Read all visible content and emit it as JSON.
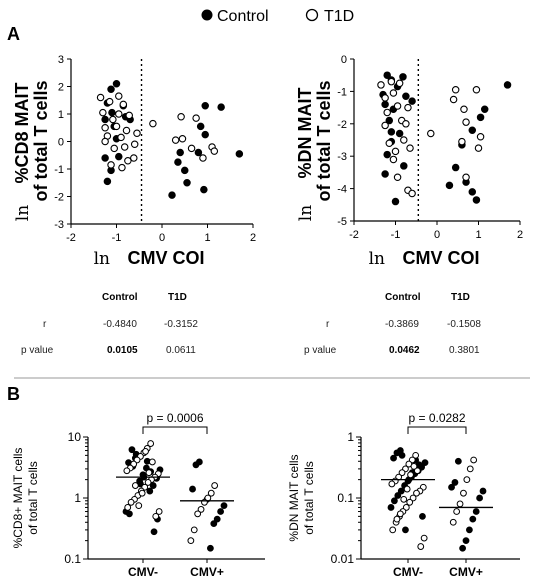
{
  "legend": {
    "control": "Control",
    "t1d": "T1D"
  },
  "panel_labels": {
    "a": "A",
    "b": "B"
  },
  "stats_table": {
    "headers": [
      "Control",
      "T1D"
    ],
    "row_labels": [
      "r",
      "p value"
    ],
    "left": {
      "r": [
        "-0.4840",
        "-0.3152"
      ],
      "p": [
        "0.0105",
        "0.0611"
      ]
    },
    "right": {
      "r": [
        "-0.3869",
        "-0.1508"
      ],
      "p": [
        "0.0462",
        "0.3801"
      ]
    }
  },
  "chart_data": [
    {
      "type": "scatter",
      "ylabel_line1": "%CD8 MAIT",
      "ylabel_line2": "of total T cells",
      "ylabel_prefix": "ln",
      "xlabel_prefix": "ln",
      "xlabel": "CMV COI",
      "xlim": [
        -2,
        2
      ],
      "ylim": [
        -3,
        3
      ],
      "xticks": [
        "-2",
        "-1",
        "0",
        "1",
        "2"
      ],
      "yticks": [
        "-3",
        "-2",
        "-1",
        "0",
        "1",
        "2",
        "3"
      ],
      "cutoff_x": -0.45,
      "series": [
        {
          "group": "control",
          "points": [
            [
              -1.25,
              0.8
            ],
            [
              -1.12,
              1.9
            ],
            [
              -1.0,
              2.1
            ],
            [
              -1.2,
              1.4
            ],
            [
              -1.1,
              1.05
            ],
            [
              -1.05,
              0.55
            ],
            [
              -0.85,
              1.3
            ],
            [
              -0.8,
              0.9
            ],
            [
              -1.0,
              0.1
            ],
            [
              -1.25,
              -0.6
            ],
            [
              -1.12,
              -1.05
            ],
            [
              -1.2,
              -1.45
            ],
            [
              -0.95,
              -0.55
            ],
            [
              -0.7,
              0.8
            ],
            [
              0.4,
              -0.4
            ],
            [
              0.35,
              -0.75
            ],
            [
              0.5,
              -1.05
            ],
            [
              0.8,
              -0.4
            ],
            [
              0.85,
              0.55
            ],
            [
              0.95,
              0.25
            ],
            [
              0.55,
              -1.5
            ],
            [
              0.92,
              -1.75
            ],
            [
              0.95,
              1.3
            ],
            [
              1.3,
              1.25
            ],
            [
              0.22,
              -1.95
            ],
            [
              1.7,
              -0.45
            ]
          ]
        },
        {
          "group": "t1d",
          "points": [
            [
              -1.35,
              1.6
            ],
            [
              -1.3,
              1.05
            ],
            [
              -1.25,
              0.5
            ],
            [
              -1.2,
              0.2
            ],
            [
              -1.15,
              1.45
            ],
            [
              -1.08,
              0.8
            ],
            [
              -1.0,
              0.55
            ],
            [
              -0.95,
              1.0
            ],
            [
              -0.9,
              0.15
            ],
            [
              -0.85,
              1.35
            ],
            [
              -0.82,
              -0.2
            ],
            [
              -0.78,
              0.4
            ],
            [
              -0.75,
              -0.7
            ],
            [
              -0.72,
              0.95
            ],
            [
              -1.05,
              -0.25
            ],
            [
              -1.12,
              -0.85
            ],
            [
              -0.88,
              -0.95
            ],
            [
              -0.62,
              -0.6
            ],
            [
              -0.55,
              0.3
            ],
            [
              -0.95,
              1.65
            ],
            [
              -0.6,
              -0.1
            ],
            [
              -1.25,
              0.0
            ],
            [
              -0.2,
              0.65
            ],
            [
              0.3,
              0.05
            ],
            [
              0.45,
              0.1
            ],
            [
              0.65,
              -0.25
            ],
            [
              0.75,
              0.85
            ],
            [
              1.1,
              -0.2
            ],
            [
              1.15,
              -0.35
            ],
            [
              0.9,
              -0.6
            ],
            [
              0.42,
              0.9
            ]
          ]
        }
      ]
    },
    {
      "type": "scatter",
      "ylabel_line1": "%DN MAIT",
      "ylabel_line2": "of total  T cells",
      "ylabel_prefix": "ln",
      "xlabel_prefix": "ln",
      "xlabel": "CMV COI",
      "xlim": [
        -2,
        2
      ],
      "ylim": [
        -5,
        0
      ],
      "xticks": [
        "-2",
        "-1",
        "0",
        "1",
        "2"
      ],
      "yticks": [
        "-5",
        "-4",
        "-3",
        "-2",
        "-1",
        "0"
      ],
      "cutoff_x": -0.45,
      "series": [
        {
          "group": "control",
          "points": [
            [
              -1.3,
              -1.1
            ],
            [
              -1.2,
              -0.5
            ],
            [
              -1.1,
              -0.65
            ],
            [
              -1.25,
              -1.4
            ],
            [
              -1.05,
              -1.55
            ],
            [
              -0.95,
              -0.85
            ],
            [
              -0.82,
              -0.55
            ],
            [
              -0.75,
              -1.15
            ],
            [
              -1.15,
              -1.9
            ],
            [
              -1.1,
              -2.25
            ],
            [
              -1.2,
              -2.95
            ],
            [
              -1.1,
              -2.55
            ],
            [
              -0.9,
              -2.3
            ],
            [
              -0.8,
              -3.3
            ],
            [
              -1.0,
              -4.4
            ],
            [
              -0.6,
              -1.3
            ],
            [
              -1.25,
              -3.55
            ],
            [
              1.7,
              -0.8
            ],
            [
              1.15,
              -1.55
            ],
            [
              1.05,
              -1.8
            ],
            [
              0.85,
              -2.2
            ],
            [
              0.6,
              -2.65
            ],
            [
              0.45,
              -3.35
            ],
            [
              0.3,
              -3.9
            ],
            [
              0.7,
              -3.8
            ],
            [
              0.85,
              -4.1
            ],
            [
              0.95,
              -4.35
            ]
          ]
        },
        {
          "group": "t1d",
          "points": [
            [
              -1.35,
              -0.8
            ],
            [
              -1.25,
              -1.2
            ],
            [
              -1.2,
              -1.65
            ],
            [
              -1.1,
              -0.7
            ],
            [
              -1.05,
              -1.05
            ],
            [
              -0.95,
              -1.45
            ],
            [
              -0.9,
              -0.75
            ],
            [
              -0.85,
              -1.9
            ],
            [
              -0.8,
              -2.5
            ],
            [
              -0.75,
              -2.0
            ],
            [
              -0.7,
              -1.5
            ],
            [
              -0.65,
              -2.75
            ],
            [
              -1.15,
              -2.6
            ],
            [
              -1.0,
              -2.85
            ],
            [
              -1.05,
              -3.1
            ],
            [
              -0.95,
              -3.65
            ],
            [
              -0.7,
              -4.05
            ],
            [
              -0.6,
              -4.15
            ],
            [
              -1.25,
              -2.05
            ],
            [
              -0.15,
              -2.3
            ],
            [
              0.4,
              -1.25
            ],
            [
              0.45,
              -0.95
            ],
            [
              0.6,
              -2.55
            ],
            [
              0.7,
              -1.95
            ],
            [
              0.95,
              -0.95
            ],
            [
              1.05,
              -2.4
            ],
            [
              1.0,
              -2.75
            ],
            [
              0.7,
              -3.65
            ],
            [
              0.65,
              -1.55
            ]
          ]
        }
      ]
    },
    {
      "type": "dot-strip",
      "ylabel_line1": "%CD8+ MAIT cells",
      "ylabel_line2": "of total T cells",
      "yscale": "log",
      "ylim": [
        0.1,
        10
      ],
      "yticks": [
        "0.1",
        "1",
        "10"
      ],
      "categories": [
        "CMV-",
        "CMV+"
      ],
      "medians": [
        2.2,
        0.9
      ],
      "bracket_label": "p = 0.0006",
      "groups": [
        {
          "category": "CMV-",
          "control": [
            4.5,
            6.2,
            3.8,
            2.9,
            2.1,
            1.6,
            1.3,
            3.1,
            2.4,
            1.9,
            5.2,
            3.3,
            0.55,
            0.6,
            0.45,
            0.28,
            2.7,
            4.0,
            2.2,
            1.7
          ],
          "t1d": [
            7.8,
            6.5,
            5.5,
            4.8,
            4.2,
            3.6,
            3.1,
            2.8,
            2.5,
            2.2,
            2.0,
            1.8,
            1.5,
            1.3,
            1.1,
            0.95,
            0.85,
            0.7,
            0.6,
            0.5,
            3.9,
            2.6,
            5.8,
            1.2,
            0.75,
            1.6
          ]
        },
        {
          "category": "CMV+",
          "control": [
            3.9,
            3.5,
            1.4,
            0.75,
            0.6,
            0.45,
            0.38,
            0.15,
            0.95
          ],
          "t1d": [
            1.6,
            1.2,
            1.0,
            0.85,
            0.65,
            0.55,
            0.3,
            0.2
          ]
        }
      ]
    },
    {
      "type": "dot-strip",
      "ylabel_line1": "%DN MAIT cells",
      "ylabel_line2": "of total T cells",
      "yscale": "log",
      "ylim": [
        0.01,
        1
      ],
      "yticks": [
        "0.01",
        "0.1",
        "1"
      ],
      "categories": [
        "CMV-",
        "CMV+"
      ],
      "medians": [
        0.2,
        0.07
      ],
      "bracket_label": "p = 0.0282",
      "groups": [
        {
          "category": "CMV-",
          "control": [
            0.6,
            0.55,
            0.45,
            0.38,
            0.32,
            0.28,
            0.25,
            0.22,
            0.19,
            0.16,
            0.13,
            0.11,
            0.09,
            0.07,
            0.05,
            0.35,
            0.42,
            0.26,
            0.2,
            0.03,
            0.5
          ],
          "t1d": [
            0.5,
            0.42,
            0.36,
            0.3,
            0.26,
            0.22,
            0.19,
            0.17,
            0.15,
            0.13,
            0.12,
            0.1,
            0.085,
            0.07,
            0.06,
            0.05,
            0.04,
            0.03,
            0.022,
            0.016,
            0.28,
            0.33,
            0.24,
            0.14,
            0.095,
            0.055,
            0.045
          ]
        },
        {
          "category": "CMV+",
          "control": [
            0.4,
            0.18,
            0.15,
            0.13,
            0.1,
            0.06,
            0.045,
            0.03,
            0.02,
            0.015
          ],
          "t1d": [
            0.42,
            0.3,
            0.2,
            0.12,
            0.08,
            0.06,
            0.04
          ]
        }
      ]
    }
  ]
}
